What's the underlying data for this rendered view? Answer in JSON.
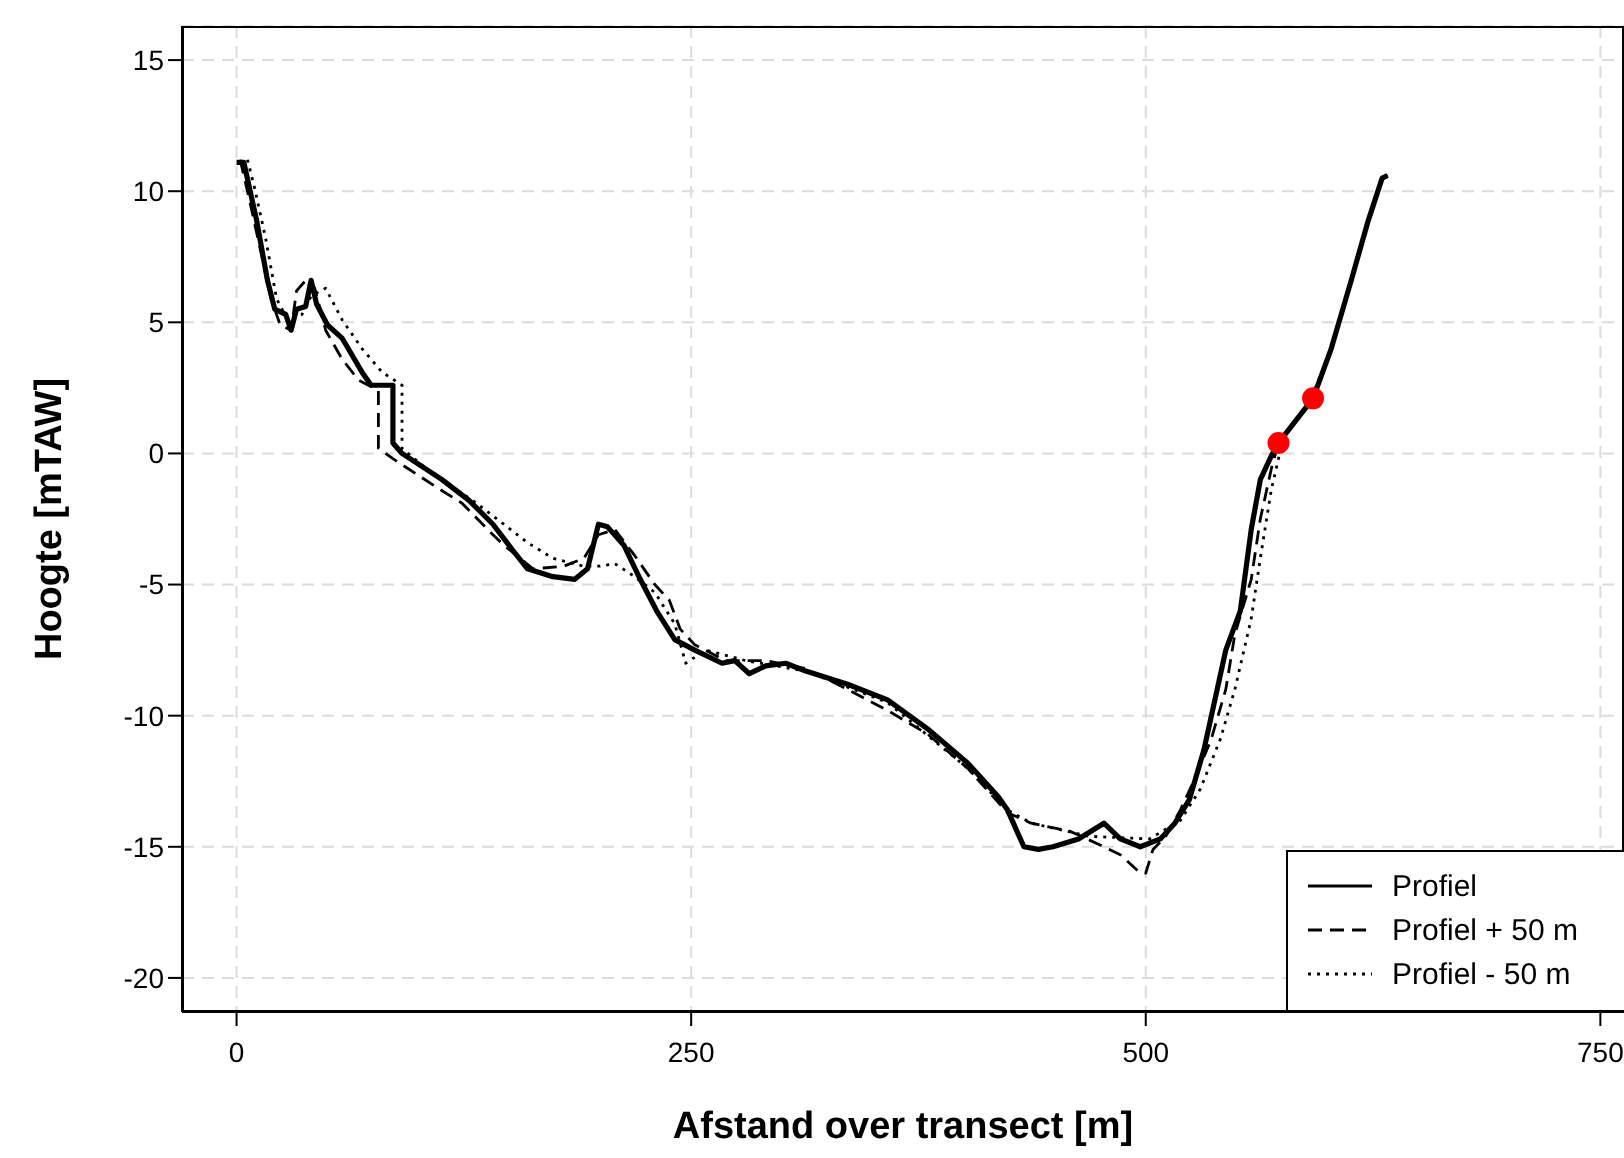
{
  "chart_data": {
    "type": "line",
    "xlabel": "Afstand over transect [m]",
    "ylabel": "Hoogte [mTAW]",
    "xlim": [
      -30,
      763
    ],
    "xticks": [
      0,
      250,
      500,
      750
    ],
    "ylim": [
      -21.3,
      16.3
    ],
    "yticks": [
      -20,
      -15,
      -10,
      -5,
      0,
      5,
      10,
      15
    ],
    "grid": true,
    "legend": "bottom right",
    "series": [
      {
        "name": "Profiel",
        "color": "#000000",
        "line_style": "solid",
        "x": [
          0,
          4,
          11,
          17,
          21,
          27,
          30,
          33,
          38,
          41,
          44,
          50,
          58,
          69,
          74,
          86,
          86,
          91,
          113,
          128,
          141,
          152,
          160,
          174,
          186,
          193,
          199,
          204,
          213,
          222,
          231,
          241,
          252,
          267,
          274,
          282,
          291,
          302,
          313,
          336,
          358,
          380,
          402,
          419,
          424,
          433,
          441,
          449,
          463,
          477,
          486,
          497,
          508,
          516,
          524,
          532,
          538,
          544,
          552,
          558,
          563,
          569,
          573,
          592,
          602,
          613,
          622,
          630,
          633
        ],
        "values": [
          11.1,
          11.1,
          8.9,
          6.6,
          5.5,
          5.3,
          4.7,
          5.5,
          5.6,
          6.6,
          5.7,
          4.9,
          4.4,
          3.1,
          2.6,
          2.6,
          0.4,
          0,
          -1,
          -1.8,
          -2.7,
          -3.7,
          -4.4,
          -4.7,
          -4.8,
          -4.4,
          -2.7,
          -2.8,
          -3.5,
          -4.8,
          -6,
          -7.1,
          -7.5,
          -8,
          -7.9,
          -8.4,
          -8.1,
          -8,
          -8.3,
          -8.8,
          -9.4,
          -10.5,
          -11.8,
          -13.1,
          -13.6,
          -15,
          -15.1,
          -15,
          -14.7,
          -14.1,
          -14.7,
          -15,
          -14.7,
          -14.1,
          -13.2,
          -11.3,
          -9.4,
          -7.5,
          -6,
          -2.9,
          -1,
          -0.1,
          0.4,
          2.1,
          4,
          6.6,
          8.8,
          10.5,
          10.6
        ]
      },
      {
        "name": "Profiel + 50 m",
        "color": "#000000",
        "line_style": "dashed",
        "x": [
          2,
          7,
          13,
          19,
          24,
          30,
          33,
          38,
          43,
          49,
          58,
          67,
          78,
          78,
          86,
          108,
          124,
          141,
          147,
          156,
          163,
          180,
          191,
          199,
          208,
          219,
          230,
          238,
          244,
          252,
          269,
          291,
          313,
          336,
          358,
          380,
          402,
          424,
          437,
          458,
          474,
          486,
          497,
          500,
          504,
          511,
          519,
          527,
          536,
          544,
          549,
          558,
          563,
          569,
          573,
          592,
          602,
          613,
          622,
          630,
          633
        ],
        "values": [
          11.2,
          9.7,
          7.8,
          5.9,
          4.9,
          4.7,
          6.2,
          6.6,
          6.3,
          4.7,
          3.6,
          2.8,
          2.4,
          0.2,
          -0.2,
          -1.2,
          -1.9,
          -3.1,
          -3.5,
          -4,
          -4.4,
          -4.3,
          -4,
          -3.1,
          -2.9,
          -3.9,
          -5,
          -5.6,
          -6.7,
          -7.3,
          -7.9,
          -7.9,
          -8.2,
          -9,
          -9.8,
          -10.7,
          -12,
          -13.7,
          -14.1,
          -14.4,
          -14.9,
          -15.3,
          -16,
          -16,
          -15.1,
          -14.6,
          -13.6,
          -12.4,
          -10.9,
          -9,
          -6.9,
          -4.8,
          -2.5,
          -0.6,
          0.4,
          2.1,
          4,
          6.6,
          8.8,
          10.5,
          10.6
        ]
      },
      {
        "name": "Profiel - 50 m",
        "color": "#000000",
        "line_style": "dotted",
        "x": [
          6,
          10,
          16,
          22,
          28,
          36,
          41,
          49,
          58,
          69,
          80,
          91,
          91,
          108,
          130,
          147,
          160,
          174,
          191,
          200,
          208,
          219,
          230,
          241,
          247,
          258,
          280,
          313,
          358,
          402,
          424,
          437,
          469,
          502,
          519,
          530,
          541,
          549,
          558,
          563,
          569,
          576,
          591,
          602,
          613,
          622,
          630,
          633
        ],
        "values": [
          11.2,
          10.1,
          8.2,
          5.9,
          5.1,
          5.3,
          6,
          6.3,
          5.1,
          4,
          3.1,
          2.6,
          0.2,
          -0.8,
          -1.8,
          -2.7,
          -3.4,
          -4,
          -4.3,
          -4.3,
          -4.2,
          -4.7,
          -5.3,
          -6.5,
          -8,
          -7.5,
          -7.9,
          -8.3,
          -9.5,
          -12,
          -13.6,
          -14.1,
          -14.6,
          -14.7,
          -14,
          -12.8,
          -10.9,
          -9,
          -6.3,
          -4,
          -1.4,
          0.7,
          2.1,
          4,
          6.6,
          8.8,
          10.5,
          10.6
        ]
      },
      {
        "type": "scatter",
        "color": "#ff0000",
        "marker": "circle",
        "x": [
          573,
          592
        ],
        "values": [
          0.4,
          2.1
        ]
      }
    ]
  }
}
